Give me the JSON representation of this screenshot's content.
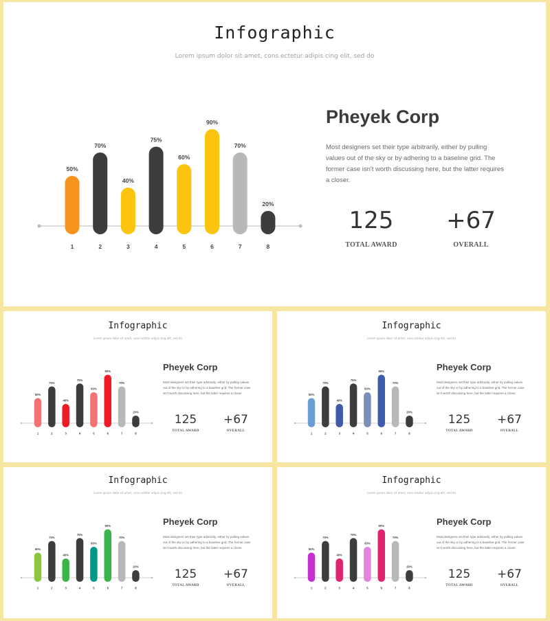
{
  "slides": [
    {
      "title": "Infographic",
      "subtitle": "Lorem ipsum dolor sit amet, cons ectetur adipis cing elit, sed do",
      "company": "Pheyek Corp",
      "description": "Most designers set their type arbitrarily, either by pulling values out of the sky or by adhering to a baseline grid. The former case isn't worth discussing here, but the latter requires a closer.",
      "stats": [
        {
          "value": "125",
          "label": "TOTAL AWARD"
        },
        {
          "value": "+67",
          "label": "OVERALL"
        }
      ],
      "chart_data": {
        "type": "bar",
        "categories": [
          "1",
          "2",
          "3",
          "4",
          "5",
          "6",
          "7",
          "8"
        ],
        "values": [
          50,
          70,
          40,
          75,
          60,
          90,
          70,
          20
        ],
        "data_labels": [
          "50%",
          "70%",
          "40%",
          "75%",
          "60%",
          "90%",
          "70%",
          "20%"
        ],
        "colors": [
          "#f7941d",
          "#3d3d3d",
          "#fcc40f",
          "#3d3d3d",
          "#fcc40f",
          "#fcc40f",
          "#b6b8ba",
          "#3d3d3d"
        ],
        "ylim": [
          0,
          100
        ]
      }
    },
    {
      "title": "Infographic",
      "subtitle": "Lorem ipsum dolor sit amet, cons ectetur adipis cing elit, sed do",
      "company": "Pheyek Corp",
      "description": "Most designers set their type arbitrarily, either by pulling values out of the sky or by adhering to a baseline grid. The former case isn't worth discussing here, but the latter requires a closer.",
      "stats": [
        {
          "value": "125",
          "label": "TOTAL AWARD"
        },
        {
          "value": "+67",
          "label": "OVERALL"
        }
      ],
      "chart_data": {
        "type": "bar",
        "categories": [
          "1",
          "2",
          "3",
          "4",
          "5",
          "6",
          "7",
          "8"
        ],
        "values": [
          50,
          70,
          40,
          75,
          60,
          90,
          70,
          20
        ],
        "data_labels": [
          "50%",
          "70%",
          "40%",
          "75%",
          "60%",
          "90%",
          "70%",
          "20%"
        ],
        "colors": [
          "#f47174",
          "#3d3d3d",
          "#ed1c24",
          "#3d3d3d",
          "#f47174",
          "#ed1c24",
          "#b6b8ba",
          "#3d3d3d"
        ],
        "ylim": [
          0,
          100
        ]
      }
    },
    {
      "title": "Infographic",
      "subtitle": "Lorem ipsum dolor sit amet, cons ectetur adipis cing elit, sed do",
      "company": "Pheyek Corp",
      "description": "Most designers set their type arbitrarily, either by pulling values out of the sky or by adhering to a baseline grid. The former case isn't worth discussing here, but the latter requires a closer.",
      "stats": [
        {
          "value": "125",
          "label": "TOTAL AWARD"
        },
        {
          "value": "+67",
          "label": "OVERALL"
        }
      ],
      "chart_data": {
        "type": "bar",
        "categories": [
          "1",
          "2",
          "3",
          "4",
          "5",
          "6",
          "7",
          "8"
        ],
        "values": [
          50,
          70,
          40,
          75,
          60,
          90,
          70,
          20
        ],
        "data_labels": [
          "50%",
          "70%",
          "40%",
          "75%",
          "60%",
          "90%",
          "70%",
          "20%"
        ],
        "colors": [
          "#6a9fd4",
          "#3d3d3d",
          "#3f5aa8",
          "#3d3d3d",
          "#7b8fb8",
          "#3f5aa8",
          "#b6b8ba",
          "#3d3d3d"
        ],
        "ylim": [
          0,
          100
        ]
      }
    },
    {
      "title": "Infographic",
      "subtitle": "Lorem ipsum dolor sit amet, cons ectetur adipis cing elit, sed do",
      "company": "Pheyek Corp",
      "description": "Most designers set their type arbitrarily, either by pulling values out of the sky or by adhering to a baseline grid. The former case isn't worth discussing here, but the latter requires a closer.",
      "stats": [
        {
          "value": "125",
          "label": "TOTAL AWARD"
        },
        {
          "value": "+67",
          "label": "OVERALL"
        }
      ],
      "chart_data": {
        "type": "bar",
        "categories": [
          "1",
          "2",
          "3",
          "4",
          "5",
          "6",
          "7",
          "8"
        ],
        "values": [
          50,
          70,
          40,
          75,
          60,
          90,
          70,
          20
        ],
        "data_labels": [
          "50%",
          "70%",
          "40%",
          "75%",
          "60%",
          "90%",
          "70%",
          "20%"
        ],
        "colors": [
          "#8cc63f",
          "#3d3d3d",
          "#39b54a",
          "#3d3d3d",
          "#009688",
          "#39b54a",
          "#b6b8ba",
          "#3d3d3d"
        ],
        "ylim": [
          0,
          100
        ]
      }
    },
    {
      "title": "Infographic",
      "subtitle": "Lorem ipsum dolor sit amet, cons ectetur adipis cing elit, sed do",
      "company": "Pheyek Corp",
      "description": "Most designers set their type arbitrarily, either by pulling values out of the sky or by adhering to a baseline grid. The former case isn't worth discussing here, but the latter requires a closer.",
      "stats": [
        {
          "value": "125",
          "label": "TOTAL AWARD"
        },
        {
          "value": "+67",
          "label": "OVERALL"
        }
      ],
      "chart_data": {
        "type": "bar",
        "categories": [
          "1",
          "2",
          "3",
          "4",
          "5",
          "6",
          "7",
          "8"
        ],
        "values": [
          50,
          70,
          40,
          75,
          60,
          90,
          70,
          20
        ],
        "data_labels": [
          "50%",
          "70%",
          "40%",
          "75%",
          "60%",
          "90%",
          "70%",
          "20%"
        ],
        "colors": [
          "#c52fcf",
          "#3d3d3d",
          "#e0246d",
          "#3d3d3d",
          "#e383df",
          "#e0246d",
          "#b6b8ba",
          "#3d3d3d"
        ],
        "ylim": [
          0,
          100
        ]
      }
    }
  ]
}
